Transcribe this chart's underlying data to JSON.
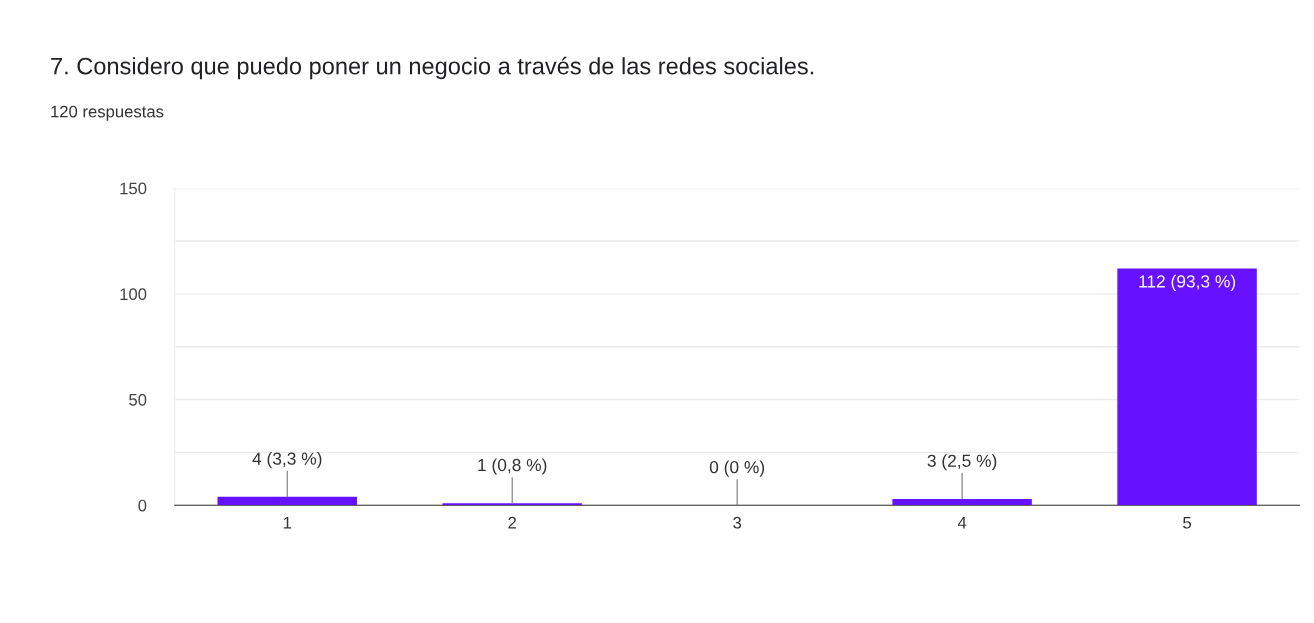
{
  "chart_data": {
    "type": "bar",
    "title": "7. Considero que puedo poner un negocio a través de las redes sociales.",
    "subtitle": "120 respuestas",
    "categories": [
      "1",
      "2",
      "3",
      "4",
      "5"
    ],
    "values": [
      4,
      1,
      0,
      3,
      112
    ],
    "value_labels": [
      "4 (3,3 %)",
      "1 (0,8 %)",
      "0 (0 %)",
      "3 (2,5 %)",
      "112 (93,3 %)"
    ],
    "color": "#6611ff",
    "ylim": [
      0,
      150
    ],
    "yticks": [
      0,
      {
        "value": 25,
        "label": null
      },
      50,
      {
        "value": 75,
        "label": null
      },
      100,
      {
        "value": 125,
        "label": null
      },
      150
    ],
    "grid": "y"
  }
}
